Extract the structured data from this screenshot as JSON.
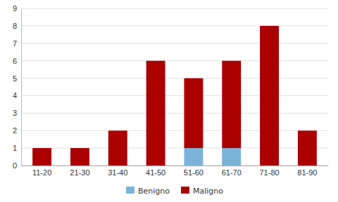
{
  "chart_data": {
    "type": "bar",
    "categories": [
      "11-20",
      "21-30",
      "31-40",
      "41-50",
      "51-60",
      "61-70",
      "71-80",
      "81-90"
    ],
    "series": [
      {
        "name": "Benigno",
        "color": "#7ab4d8",
        "values": [
          0,
          0,
          0,
          0,
          1,
          1,
          0,
          0
        ]
      },
      {
        "name": "Maligno",
        "color": "#aa0000",
        "values": [
          1,
          1,
          2,
          6,
          4,
          5,
          8,
          2
        ]
      }
    ],
    "stacked": true,
    "ylim": [
      0,
      9
    ],
    "yticks": [
      0,
      1,
      2,
      3,
      4,
      5,
      6,
      7,
      8,
      9
    ],
    "grid": true,
    "legend": "bottom"
  }
}
